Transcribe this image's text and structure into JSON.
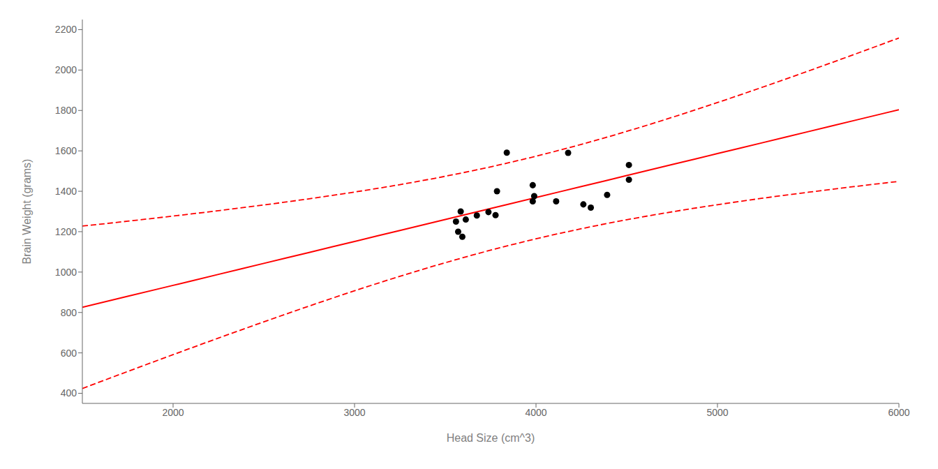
{
  "chart_data": {
    "type": "scatter",
    "xlabel": "Head Size (cm^3)",
    "ylabel": "Brain Weight (grams)",
    "xlim": [
      1500,
      6000
    ],
    "ylim": [
      350,
      2250
    ],
    "xticks": [
      2000,
      3000,
      4000,
      5000,
      6000
    ],
    "yticks": [
      400,
      600,
      800,
      1000,
      1200,
      1400,
      1600,
      1800,
      2000,
      2200
    ],
    "grid": false,
    "series": [
      {
        "type": "scatter",
        "color": "#000000",
        "marker": "circle",
        "x": [
          4512,
          3738,
          4261,
          3777,
          4177,
          3585,
          3785,
          3559,
          3613,
          3982,
          3839,
          3674,
          3982,
          4111,
          3990,
          4302,
          4392,
          4512,
          3571,
          3594
        ],
        "values": [
          1530,
          1297,
          1335,
          1282,
          1590,
          1300,
          1400,
          1250,
          1260,
          1430,
          1591,
          1280,
          1350,
          1350,
          1376,
          1319,
          1382,
          1457,
          1200,
          1175
        ]
      },
      {
        "type": "line",
        "color": "#FF0000",
        "line_style": "solid",
        "x": [
          1500,
          1750,
          2000,
          2250,
          2500,
          2750,
          3000,
          3250,
          3500,
          3750,
          4000,
          4250,
          4500,
          4750,
          5000,
          5250,
          5500,
          5750,
          6000
        ],
        "values": [
          825.6,
          880.0,
          934.3,
          988.6,
          1043.0,
          1097.3,
          1151.7,
          1206.0,
          1260.4,
          1314.7,
          1369.0,
          1423.4,
          1477.7,
          1532.1,
          1586.4,
          1640.8,
          1695.1,
          1749.5,
          1803.8
        ]
      },
      {
        "type": "line",
        "color": "#FF0000",
        "line_style": "dashed",
        "x": [
          1500,
          1750,
          2000,
          2250,
          2500,
          2750,
          3000,
          3250,
          3500,
          3750,
          4000,
          4250,
          4500,
          4750,
          5000,
          5250,
          5500,
          5750,
          6000
        ],
        "values": [
          1227.6,
          1251.9,
          1277.3,
          1303.9,
          1332.2,
          1362.8,
          1396.1,
          1432.9,
          1474.3,
          1521.0,
          1573.5,
          1632.2,
          1696.5,
          1765.8,
          1839.2,
          1915.8,
          1995.0,
          2076.1,
          2158.7
        ]
      },
      {
        "type": "line",
        "color": "#FF0000",
        "line_style": "dashed",
        "x": [
          1500,
          1750,
          2000,
          2250,
          2500,
          2750,
          3000,
          3250,
          3500,
          3750,
          4000,
          4250,
          4500,
          4750,
          5000,
          5250,
          5500,
          5750,
          6000
        ],
        "values": [
          423.7,
          508.0,
          591.3,
          673.4,
          753.7,
          831.9,
          907.3,
          979.1,
          1046.4,
          1108.4,
          1164.6,
          1214.6,
          1259.0,
          1298.3,
          1333.6,
          1365.7,
          1395.2,
          1422.8,
          1448.9
        ]
      }
    ]
  }
}
